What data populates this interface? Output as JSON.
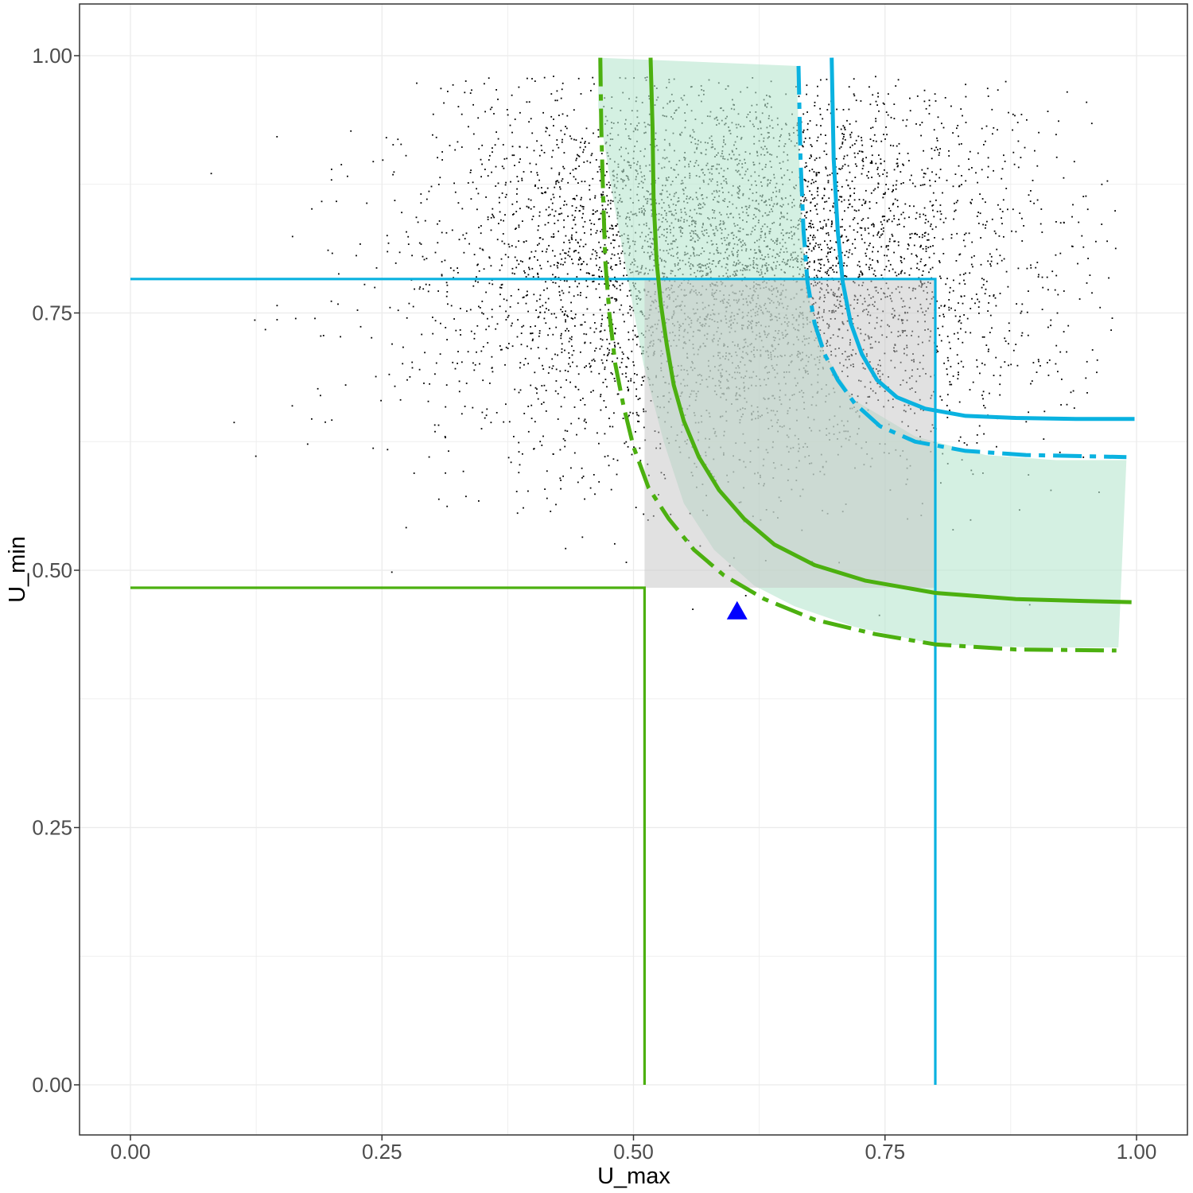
{
  "chart_data": {
    "type": "scatter",
    "title": "",
    "xlabel": "U_max",
    "ylabel": "U_min",
    "xlim": [
      -0.05,
      1.05
    ],
    "ylim": [
      -0.05,
      1.05
    ],
    "x_ticks": [
      0.0,
      0.25,
      0.5,
      0.75,
      1.0
    ],
    "x_tick_labels": [
      "0.00",
      "0.25",
      "0.50",
      "0.75",
      "1.00"
    ],
    "y_ticks": [
      0.0,
      0.25,
      0.5,
      0.75,
      1.0
    ],
    "y_tick_labels": [
      "0.00",
      "0.25",
      "0.50",
      "0.75",
      "1.00"
    ],
    "grid": true,
    "legend": "none",
    "colors": {
      "green": "#4cb010",
      "blue": "#0ab2e0",
      "region_fill": "#b7e6cf",
      "rect_fill": "#c4c4c4",
      "points": "#000000",
      "marker": "#0000ff",
      "grid": "#ebebeb",
      "border": "#333333"
    },
    "scatter_cloud": {
      "n_points": 5500,
      "center": [
        0.6,
        0.8
      ],
      "sd": [
        0.15,
        0.1
      ],
      "x_range": [
        0.07,
        0.98
      ],
      "y_range": [
        0.15,
        0.98
      ]
    },
    "marker_point": {
      "shape": "triangle",
      "x": 0.603,
      "y": 0.46
    },
    "green_rect_lines": {
      "x": 0.511,
      "y": 0.483
    },
    "blue_rect_lines": {
      "x": 0.8,
      "y": 0.783
    },
    "gray_rect": {
      "x0": 0.511,
      "x1": 0.8,
      "y0": 0.483,
      "y1": 0.783
    },
    "region_fill_outline": [
      [
        0.465,
        0.998
      ],
      [
        0.662,
        0.99
      ],
      [
        0.664,
        0.93
      ],
      [
        0.666,
        0.86
      ],
      [
        0.67,
        0.8
      ],
      [
        0.676,
        0.76
      ],
      [
        0.69,
        0.71
      ],
      [
        0.72,
        0.665
      ],
      [
        0.78,
        0.63
      ],
      [
        0.85,
        0.612
      ],
      [
        0.92,
        0.607
      ],
      [
        0.99,
        0.607
      ],
      [
        0.982,
        0.425
      ],
      [
        0.9,
        0.425
      ],
      [
        0.8,
        0.428
      ],
      [
        0.72,
        0.445
      ],
      [
        0.66,
        0.465
      ],
      [
        0.62,
        0.485
      ],
      [
        0.58,
        0.52
      ],
      [
        0.55,
        0.565
      ],
      [
        0.53,
        0.625
      ],
      [
        0.51,
        0.7
      ],
      [
        0.495,
        0.78
      ],
      [
        0.48,
        0.86
      ],
      [
        0.465,
        0.95
      ]
    ],
    "series": [
      {
        "color": "green",
        "dash": "solid",
        "x": [
          0.517,
          0.519,
          0.52,
          0.523,
          0.527,
          0.533,
          0.54,
          0.55,
          0.565,
          0.585,
          0.61,
          0.64,
          0.68,
          0.73,
          0.8,
          0.88,
          0.95,
          0.995
        ],
        "y": [
          0.998,
          0.93,
          0.86,
          0.8,
          0.76,
          0.72,
          0.68,
          0.645,
          0.61,
          0.578,
          0.55,
          0.525,
          0.505,
          0.49,
          0.478,
          0.472,
          0.47,
          0.469
        ]
      },
      {
        "color": "green",
        "dash": "dashed",
        "x": [
          0.467,
          0.468,
          0.47,
          0.472,
          0.476,
          0.482,
          0.49,
          0.5,
          0.515,
          0.535,
          0.56,
          0.59,
          0.63,
          0.68,
          0.74,
          0.8,
          0.88,
          0.98
        ],
        "y": [
          0.998,
          0.93,
          0.86,
          0.8,
          0.75,
          0.7,
          0.66,
          0.62,
          0.58,
          0.55,
          0.52,
          0.495,
          0.472,
          0.452,
          0.438,
          0.428,
          0.423,
          0.422
        ]
      },
      {
        "color": "blue",
        "dash": "solid",
        "x": [
          0.697,
          0.699,
          0.703,
          0.708,
          0.716,
          0.727,
          0.742,
          0.762,
          0.79,
          0.83,
          0.88,
          0.94,
          0.998
        ],
        "y": [
          0.998,
          0.9,
          0.83,
          0.78,
          0.74,
          0.71,
          0.685,
          0.668,
          0.657,
          0.65,
          0.648,
          0.647,
          0.647
        ]
      },
      {
        "color": "blue",
        "dash": "dashed",
        "x": [
          0.664,
          0.666,
          0.669,
          0.673,
          0.68,
          0.69,
          0.703,
          0.72,
          0.745,
          0.78,
          0.83,
          0.89,
          0.99
        ],
        "y": [
          0.99,
          0.9,
          0.83,
          0.78,
          0.74,
          0.71,
          0.685,
          0.662,
          0.64,
          0.625,
          0.616,
          0.612,
          0.61
        ]
      }
    ]
  }
}
